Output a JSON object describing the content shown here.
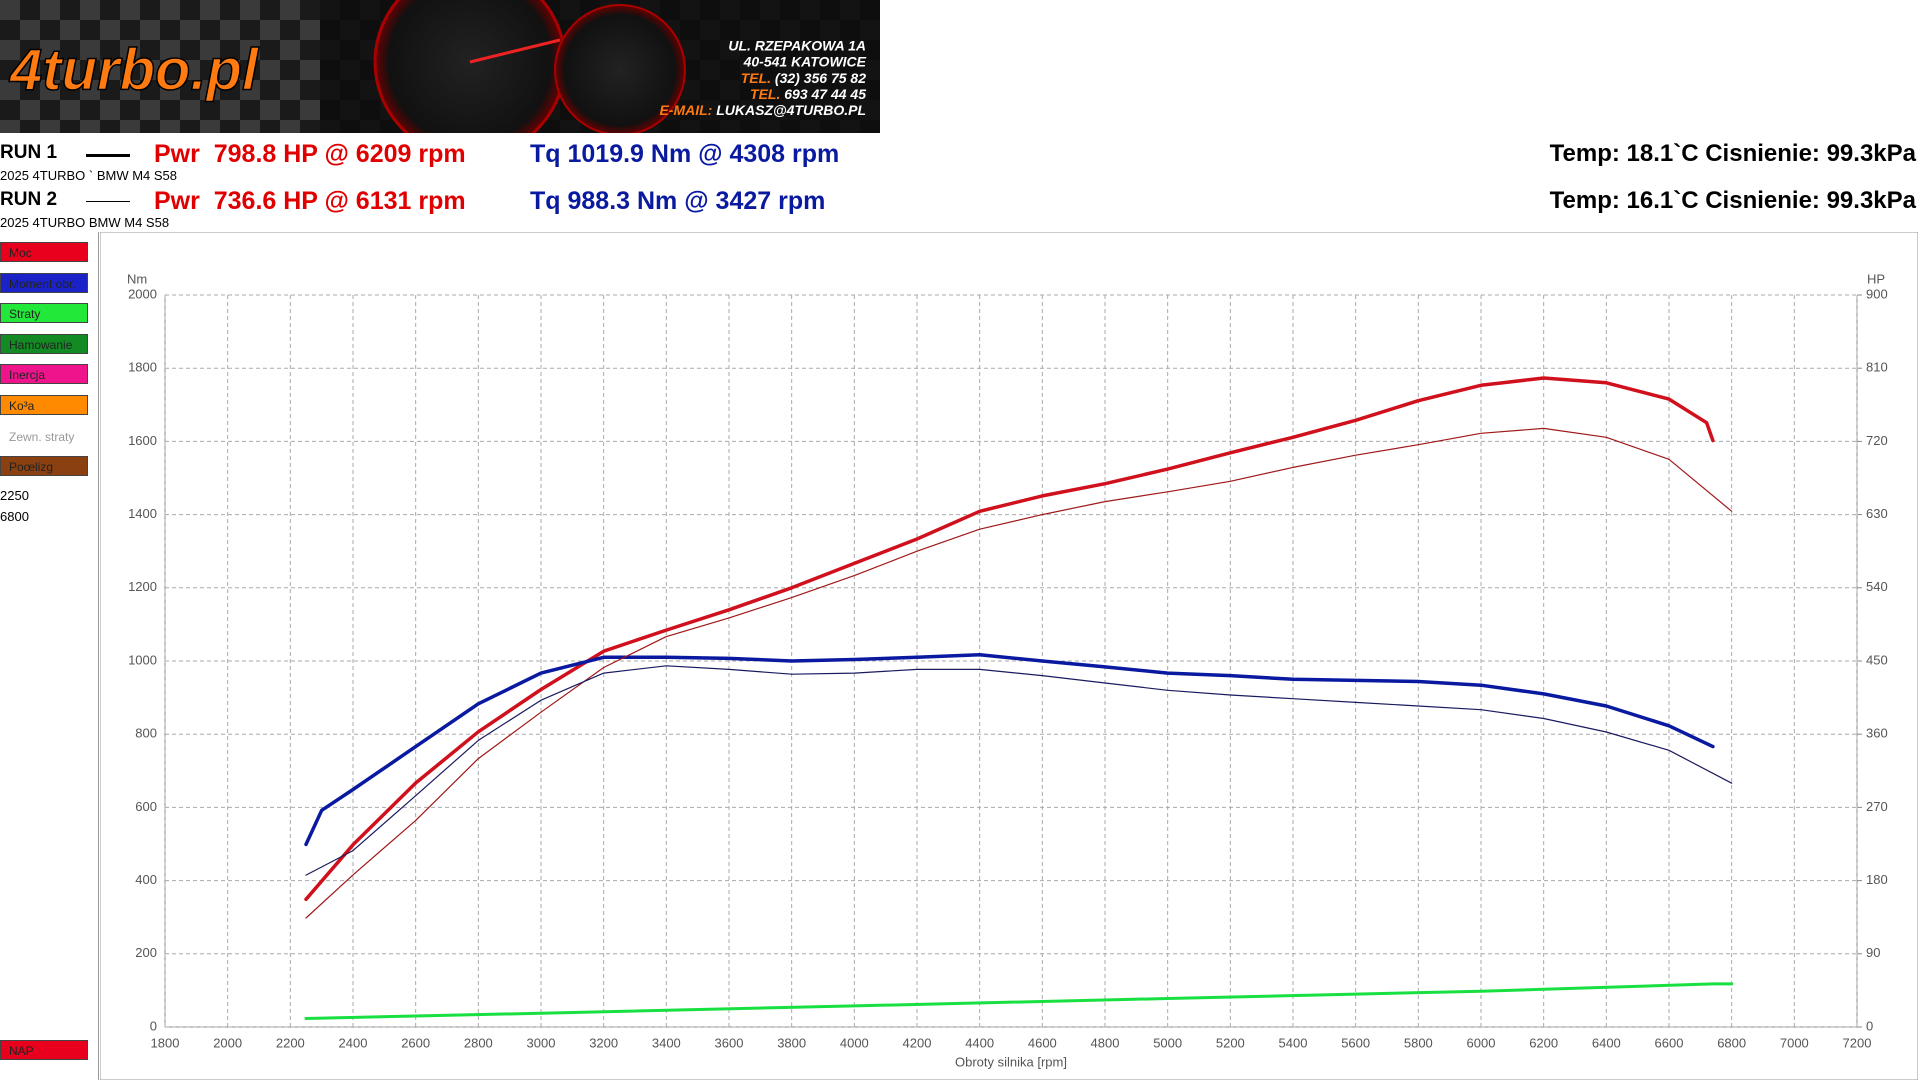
{
  "header": {
    "logo": "4turbo.pl",
    "address": [
      "UL. RZEPAKOWA 1A",
      "40-541 KATOWICE"
    ],
    "contacts": [
      {
        "label": "TEL.",
        "value": "(32) 356 75 82"
      },
      {
        "label": "TEL.",
        "value": "693 47 44 45"
      },
      {
        "label": "E-MAIL:",
        "value": "LUKASZ@4TURBO.PL"
      }
    ]
  },
  "runs": [
    {
      "name": "RUN 1",
      "car": "2025 4TURBO ` BMW M4 S58",
      "power": "Pwr  798.8 HP @ 6209 rpm",
      "torque": "Tq 1019.9 Nm @ 4308 rpm",
      "conditions": "Temp: 18.1`C Cisnienie: 99.3kPa"
    },
    {
      "name": "RUN 2",
      "car": "2025 4TURBO BMW M4 S58",
      "power": "Pwr  736.6 HP @ 6131 rpm",
      "torque": "Tq 988.3 Nm @ 3427 rpm",
      "conditions": "Temp: 16.1`C Cisnienie: 99.3kPa"
    }
  ],
  "sidebar": {
    "buttons": [
      {
        "label": "Moc",
        "color": "#e8001c"
      },
      {
        "label": "Moment obr.",
        "color": "#1a22c8"
      },
      {
        "label": "Straty",
        "color": "#22e83a"
      },
      {
        "label": "Hamowanie",
        "color": "#138a24"
      },
      {
        "label": "Inercja",
        "color": "#f0148c"
      },
      {
        "label": "Ko³a",
        "color": "#ff8a00"
      },
      {
        "label": "Zewn. straty",
        "color": "#ffffff"
      },
      {
        "label": "Poœlizg",
        "color": "#8a4010"
      }
    ],
    "range": [
      "2250",
      "6800"
    ],
    "bottom": [
      {
        "label": "NAP",
        "color": "#e8001c"
      }
    ]
  },
  "chart_data": {
    "type": "line",
    "xlabel": "Obroty silnika [rpm]",
    "ylabel": "Nm",
    "y2label": "HP",
    "xlim": [
      1800,
      7200
    ],
    "xticks": [
      1800,
      2000,
      2200,
      2400,
      2600,
      2800,
      3000,
      3200,
      3400,
      3600,
      3800,
      4000,
      4200,
      4400,
      4600,
      4800,
      5000,
      5200,
      5400,
      5600,
      5800,
      6000,
      6200,
      6400,
      6600,
      6800,
      7000,
      7200
    ],
    "ylim": [
      0,
      2000
    ],
    "yticks": [
      0,
      200,
      400,
      600,
      800,
      1000,
      1200,
      1400,
      1600,
      1800,
      2000
    ],
    "y2lim": [
      0,
      900
    ],
    "y2ticks": [
      0,
      90,
      180,
      270,
      360,
      450,
      540,
      630,
      720,
      810,
      900
    ],
    "grid": true,
    "series": [
      {
        "color": "#d0101c",
        "width": 3.5,
        "axis": "y2",
        "x": [
          2250,
          2400,
          2600,
          2800,
          3000,
          3200,
          3400,
          3600,
          3800,
          4000,
          4200,
          4400,
          4600,
          4800,
          5000,
          5200,
          5400,
          5600,
          5800,
          6000,
          6200,
          6400,
          6600,
          6720,
          6740
        ],
        "values": [
          157,
          224,
          300,
          363,
          415,
          462,
          488,
          513,
          540,
          570,
          600,
          634,
          653,
          668,
          686,
          706,
          725,
          746,
          770,
          789,
          798,
          792,
          772,
          743,
          721
        ]
      },
      {
        "color": "#0a1aa0",
        "width": 3.5,
        "x": [
          2250,
          2300,
          2400,
          2600,
          2800,
          3000,
          3200,
          3400,
          3600,
          3800,
          4000,
          4200,
          4400,
          4600,
          4800,
          5000,
          5200,
          5400,
          5600,
          5800,
          6000,
          6200,
          6400,
          6600,
          6740
        ],
        "values": [
          499,
          592,
          649,
          766,
          883,
          967,
          1010,
          1010,
          1007,
          1000,
          1004,
          1010,
          1017,
          1000,
          984,
          967,
          960,
          950,
          947,
          944,
          934,
          910,
          877,
          823,
          766
        ]
      },
      {
        "color": "#a01818",
        "width": 1.2,
        "axis": "y2",
        "x": [
          2250,
          2400,
          2600,
          2800,
          3000,
          3200,
          3400,
          3600,
          3800,
          4000,
          4200,
          4400,
          4600,
          4800,
          5000,
          5200,
          5400,
          5600,
          5800,
          6000,
          6200,
          6400,
          6600,
          6800
        ],
        "values": [
          134,
          187,
          254,
          330,
          387,
          442,
          480,
          503,
          528,
          555,
          585,
          612,
          630,
          646,
          658,
          671,
          688,
          703,
          716,
          730,
          736,
          725,
          698,
          634
        ]
      },
      {
        "color": "#1a1a60",
        "width": 1.2,
        "x": [
          2250,
          2400,
          2600,
          2800,
          3000,
          3200,
          3400,
          3600,
          3800,
          4000,
          4200,
          4400,
          4600,
          4800,
          5000,
          5200,
          5400,
          5600,
          5800,
          6000,
          6200,
          6400,
          6600,
          6800
        ],
        "values": [
          415,
          482,
          632,
          783,
          893,
          967,
          987,
          977,
          964,
          967,
          977,
          977,
          960,
          940,
          920,
          907,
          897,
          887,
          877,
          867,
          843,
          806,
          756,
          666
        ]
      },
      {
        "color": "#18e040",
        "width": 3,
        "axis": "y2",
        "x": [
          2250,
          3000,
          4000,
          5000,
          6000,
          6740,
          6800
        ],
        "values": [
          10.5,
          17,
          26,
          35,
          44,
          53,
          53
        ]
      }
    ]
  }
}
